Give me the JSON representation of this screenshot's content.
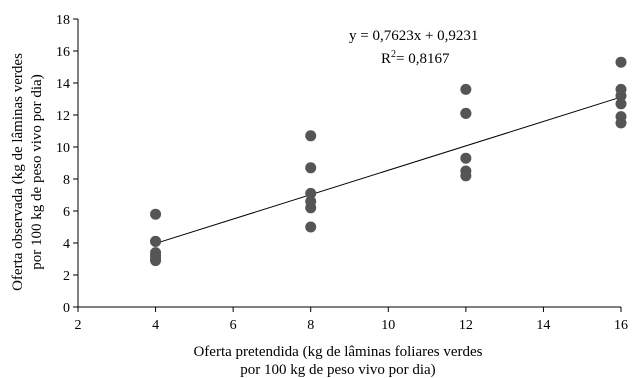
{
  "chart_data": {
    "type": "scatter",
    "xlabel_lines": [
      "Oferta pretendida (kg de lâminas foliares verdes",
      "por 100 kg de peso vivo por dia)"
    ],
    "ylabel_lines": [
      "Oferta observada (kg de lâminas verdes",
      "por 100 kg de peso vivo por dia)"
    ],
    "xlim": [
      2,
      16
    ],
    "ylim": [
      0,
      18
    ],
    "xticks": [
      "2",
      "4",
      "6",
      "8",
      "10",
      "12",
      "14",
      "16"
    ],
    "yticks": [
      "0",
      "2",
      "4",
      "6",
      "8",
      "10",
      "12",
      "14",
      "16",
      "18"
    ],
    "grid": false,
    "series": [
      {
        "points": [
          [
            4,
            5.8
          ],
          [
            4,
            4.1
          ],
          [
            4,
            4.1
          ],
          [
            4,
            3.4
          ],
          [
            4,
            3.2
          ],
          [
            4,
            3.0
          ],
          [
            4,
            2.9
          ],
          [
            8,
            10.7
          ],
          [
            8,
            8.7
          ],
          [
            8,
            7.1
          ],
          [
            8,
            6.6
          ],
          [
            8,
            6.2
          ],
          [
            8,
            5.0
          ],
          [
            12,
            13.6
          ],
          [
            12,
            12.1
          ],
          [
            12,
            12.1
          ],
          [
            12,
            9.3
          ],
          [
            12,
            8.5
          ],
          [
            12,
            8.2
          ],
          [
            16,
            15.3
          ],
          [
            16,
            13.6
          ],
          [
            16,
            13.2
          ],
          [
            16,
            12.7
          ],
          [
            16,
            11.9
          ],
          [
            16,
            11.5
          ]
        ],
        "color": "#555555"
      }
    ],
    "trendline": {
      "slope": 0.7623,
      "intercept": 0.9231,
      "x_range": [
        4,
        16
      ],
      "color": "#000000"
    },
    "annotations": {
      "equation": "y = 0,7623x + 0,9231",
      "r2_prefix": "R",
      "r2_sup": "2",
      "r2_value": "= 0,8167"
    }
  }
}
